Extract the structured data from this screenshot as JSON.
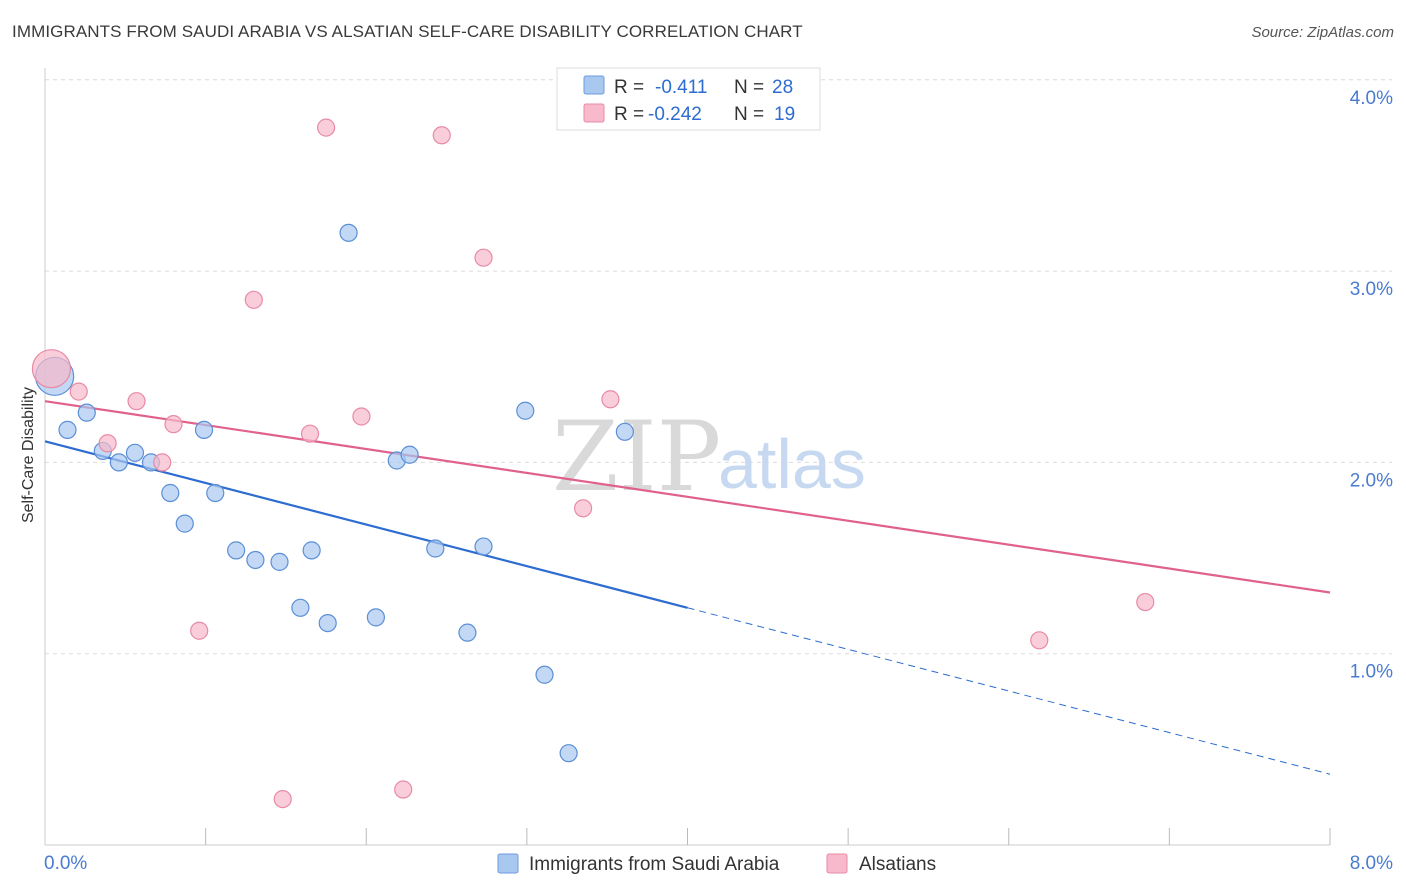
{
  "header": {
    "title": "IMMIGRANTS FROM SAUDI ARABIA VS ALSATIAN SELF-CARE DISABILITY CORRELATION CHART",
    "source": "Source: ZipAtlas.com"
  },
  "watermark": {
    "zip": "ZIP",
    "atlas": "atlas"
  },
  "legend": {
    "rows": [
      {
        "r_label": "R =",
        "r_value": "-0.411",
        "n_label": "N =",
        "n_value": "28",
        "color": "#a8c8f0",
        "stroke": "#6d9be0"
      },
      {
        "r_label": "R =",
        "r_value": "-0.242",
        "n_label": "N =",
        "n_value": "19",
        "color": "#f7b9cb",
        "stroke": "#e88aa6"
      }
    ]
  },
  "bottom_legend": {
    "series1": "Immigrants from Saudi Arabia",
    "series2": "Alsatians"
  },
  "chart_data": {
    "type": "scatter",
    "title": "IMMIGRANTS FROM SAUDI ARABIA VS ALSATIAN SELF-CARE DISABILITY CORRELATION CHART",
    "xlabel": "",
    "ylabel": "Self-Care Disability",
    "xlim": [
      0,
      8
    ],
    "ylim": [
      0,
      4.1
    ],
    "x_tick_labels": [
      "0.0%",
      "8.0%"
    ],
    "y_ticks": [
      1,
      2,
      3,
      4
    ],
    "y_tick_labels": [
      "1.0%",
      "2.0%",
      "3.0%",
      "4.0%"
    ],
    "grid": true,
    "series": [
      {
        "name": "Immigrants from Saudi Arabia",
        "color": "#a8c8f0",
        "stroke": "#5b8fd6",
        "trend_color": "#2d6cd0",
        "points": [
          {
            "x": 0.06,
            "y": 2.45,
            "size": "large"
          },
          {
            "x": 0.14,
            "y": 2.17
          },
          {
            "x": 0.26,
            "y": 2.26
          },
          {
            "x": 0.36,
            "y": 2.06
          },
          {
            "x": 0.46,
            "y": 2.0
          },
          {
            "x": 0.56,
            "y": 2.05
          },
          {
            "x": 0.66,
            "y": 2.0
          },
          {
            "x": 0.78,
            "y": 1.84
          },
          {
            "x": 0.87,
            "y": 1.68
          },
          {
            "x": 0.99,
            "y": 2.17
          },
          {
            "x": 1.06,
            "y": 1.84
          },
          {
            "x": 1.19,
            "y": 1.54
          },
          {
            "x": 1.31,
            "y": 1.49
          },
          {
            "x": 1.46,
            "y": 1.48
          },
          {
            "x": 1.59,
            "y": 1.24
          },
          {
            "x": 1.66,
            "y": 1.54
          },
          {
            "x": 1.76,
            "y": 1.16
          },
          {
            "x": 1.89,
            "y": 3.2
          },
          {
            "x": 2.06,
            "y": 1.19
          },
          {
            "x": 2.19,
            "y": 2.01
          },
          {
            "x": 2.27,
            "y": 2.04
          },
          {
            "x": 2.43,
            "y": 1.55
          },
          {
            "x": 2.63,
            "y": 1.11
          },
          {
            "x": 2.73,
            "y": 1.56
          },
          {
            "x": 2.99,
            "y": 2.27
          },
          {
            "x": 3.11,
            "y": 0.89
          },
          {
            "x": 3.26,
            "y": 0.48
          },
          {
            "x": 3.61,
            "y": 2.16
          }
        ],
        "trend": {
          "x_start": 0,
          "y_start": 2.11,
          "x_solid_end": 4.0,
          "x_end": 8.0,
          "y_end": 0.37
        }
      },
      {
        "name": "Alsatians",
        "color": "#f7b9cb",
        "stroke": "#e88aa6",
        "trend_color": "#e0628c",
        "points": [
          {
            "x": 0.04,
            "y": 2.49,
            "size": "large"
          },
          {
            "x": 0.21,
            "y": 2.37
          },
          {
            "x": 0.39,
            "y": 2.1
          },
          {
            "x": 0.57,
            "y": 2.32
          },
          {
            "x": 0.73,
            "y": 2.0
          },
          {
            "x": 0.8,
            "y": 2.2
          },
          {
            "x": 0.96,
            "y": 1.12
          },
          {
            "x": 1.3,
            "y": 2.85
          },
          {
            "x": 1.48,
            "y": 0.24
          },
          {
            "x": 1.65,
            "y": 2.15
          },
          {
            "x": 1.75,
            "y": 3.75
          },
          {
            "x": 1.97,
            "y": 2.24
          },
          {
            "x": 2.23,
            "y": 0.29
          },
          {
            "x": 2.47,
            "y": 3.71
          },
          {
            "x": 2.73,
            "y": 3.07
          },
          {
            "x": 3.35,
            "y": 1.76
          },
          {
            "x": 3.52,
            "y": 2.33
          },
          {
            "x": 6.19,
            "y": 1.07
          },
          {
            "x": 6.85,
            "y": 1.27
          }
        ],
        "trend": {
          "x_start": 0,
          "y_start": 2.32,
          "x_solid_end": 8.0,
          "x_end": 8.0,
          "y_end": 1.32
        }
      }
    ]
  }
}
